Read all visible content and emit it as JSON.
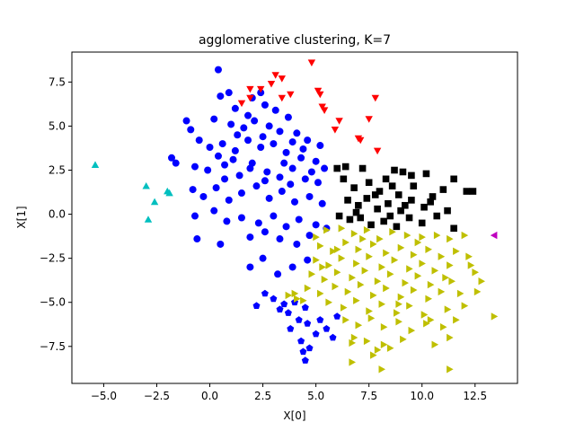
{
  "chart_data": {
    "type": "scatter",
    "title": "agglomerative clustering, K=7",
    "xlabel": "X[0]",
    "ylabel": "X[1]",
    "xlim": [
      -6.5,
      14.5
    ],
    "ylim": [
      -9.6,
      9.2
    ],
    "xticks": [
      -5.0,
      -2.5,
      0.0,
      2.5,
      5.0,
      7.5,
      10.0,
      12.5
    ],
    "xtick_labels": [
      "−5.0",
      "−2.5",
      "0.0",
      "2.5",
      "5.0",
      "7.5",
      "10.0",
      "12.5"
    ],
    "yticks": [
      -7.5,
      -5.0,
      -2.5,
      0.0,
      2.5,
      5.0,
      7.5
    ],
    "ytick_labels": [
      "−7.5",
      "−5.0",
      "−2.5",
      "0.0",
      "2.5",
      "5.0",
      "7.5"
    ],
    "grid": false,
    "legend": "none",
    "series": [
      {
        "marker": "circle",
        "color": "#0000ff",
        "points": [
          [
            0.4,
            8.2
          ],
          [
            0.9,
            6.9
          ],
          [
            0.5,
            6.7
          ],
          [
            2.0,
            6.6
          ],
          [
            2.4,
            6.9
          ],
          [
            2.6,
            6.2
          ],
          [
            1.2,
            6.0
          ],
          [
            1.8,
            5.6
          ],
          [
            3.1,
            5.9
          ],
          [
            3.7,
            5.5
          ],
          [
            -1.1,
            5.3
          ],
          [
            -0.9,
            4.8
          ],
          [
            0.2,
            5.4
          ],
          [
            1.0,
            5.1
          ],
          [
            1.6,
            4.9
          ],
          [
            2.1,
            5.3
          ],
          [
            2.8,
            5.0
          ],
          [
            3.3,
            4.7
          ],
          [
            4.1,
            4.6
          ],
          [
            4.6,
            4.2
          ],
          [
            5.2,
            3.9
          ],
          [
            -0.5,
            4.2
          ],
          [
            0.0,
            3.8
          ],
          [
            0.6,
            4.0
          ],
          [
            1.2,
            3.6
          ],
          [
            1.8,
            4.2
          ],
          [
            2.4,
            3.8
          ],
          [
            3.0,
            4.0
          ],
          [
            3.6,
            3.5
          ],
          [
            4.3,
            3.2
          ],
          [
            5.0,
            3.0
          ],
          [
            5.4,
            2.6
          ],
          [
            -1.8,
            3.2
          ],
          [
            -1.6,
            2.9
          ],
          [
            -0.7,
            2.7
          ],
          [
            -0.1,
            2.5
          ],
          [
            0.7,
            2.8
          ],
          [
            1.4,
            2.2
          ],
          [
            2.0,
            2.9
          ],
          [
            2.7,
            2.4
          ],
          [
            3.3,
            2.1
          ],
          [
            3.9,
            2.6
          ],
          [
            4.5,
            2.0
          ],
          [
            5.1,
            1.8
          ],
          [
            -0.8,
            1.4
          ],
          [
            -0.3,
            1.0
          ],
          [
            0.3,
            1.5
          ],
          [
            0.9,
            0.8
          ],
          [
            1.5,
            1.2
          ],
          [
            2.2,
            1.6
          ],
          [
            2.8,
            0.9
          ],
          [
            3.4,
            1.3
          ],
          [
            4.0,
            0.7
          ],
          [
            4.7,
            1.0
          ],
          [
            5.3,
            0.6
          ],
          [
            -0.7,
            -0.1
          ],
          [
            0.2,
            0.2
          ],
          [
            0.8,
            -0.4
          ],
          [
            1.5,
            -0.2
          ],
          [
            2.3,
            -0.5
          ],
          [
            3.0,
            -0.1
          ],
          [
            3.6,
            -0.7
          ],
          [
            4.2,
            -0.3
          ],
          [
            5.0,
            -0.6
          ],
          [
            5.5,
            -0.8
          ],
          [
            -0.6,
            -1.4
          ],
          [
            0.5,
            -1.7
          ],
          [
            1.9,
            -1.3
          ],
          [
            2.6,
            -1.0
          ],
          [
            3.3,
            -1.4
          ],
          [
            4.1,
            -1.7
          ],
          [
            4.7,
            -1.2
          ],
          [
            1.9,
            -3.0
          ],
          [
            2.5,
            -2.5
          ],
          [
            3.2,
            -3.4
          ],
          [
            3.9,
            -3.0
          ],
          [
            4.6,
            -2.6
          ],
          [
            0.7,
            2.0
          ],
          [
            1.1,
            3.1
          ],
          [
            1.9,
            2.6
          ],
          [
            3.5,
            2.9
          ],
          [
            4.8,
            2.4
          ],
          [
            2.6,
            1.9
          ],
          [
            3.8,
            1.7
          ],
          [
            1.3,
            4.5
          ],
          [
            2.5,
            4.4
          ],
          [
            3.9,
            4.1
          ],
          [
            4.4,
            3.7
          ],
          [
            0.4,
            3.3
          ]
        ]
      },
      {
        "marker": "pentagon",
        "color": "#0000ff",
        "points": [
          [
            2.6,
            -4.5
          ],
          [
            3.0,
            -4.8
          ],
          [
            2.2,
            -5.2
          ],
          [
            3.3,
            -5.4
          ],
          [
            3.7,
            -5.6
          ],
          [
            4.0,
            -5.0
          ],
          [
            4.5,
            -5.3
          ],
          [
            4.2,
            -6.0
          ],
          [
            3.8,
            -6.5
          ],
          [
            4.6,
            -6.2
          ],
          [
            5.0,
            -6.8
          ],
          [
            4.3,
            -7.2
          ],
          [
            4.7,
            -7.6
          ],
          [
            5.5,
            -6.5
          ],
          [
            5.8,
            -7.0
          ],
          [
            6.0,
            -5.8
          ],
          [
            3.5,
            -5.1
          ],
          [
            4.4,
            -7.8
          ],
          [
            4.5,
            -8.3
          ],
          [
            5.2,
            -6.0
          ]
        ]
      },
      {
        "marker": "triangle-down",
        "color": "#ff0000",
        "points": [
          [
            4.8,
            8.6
          ],
          [
            3.1,
            7.9
          ],
          [
            3.4,
            7.7
          ],
          [
            2.9,
            7.4
          ],
          [
            2.4,
            7.1
          ],
          [
            1.9,
            7.1
          ],
          [
            3.8,
            6.8
          ],
          [
            5.1,
            7.0
          ],
          [
            5.2,
            6.8
          ],
          [
            1.9,
            6.6
          ],
          [
            1.5,
            6.3
          ],
          [
            3.4,
            6.6
          ],
          [
            7.8,
            6.6
          ],
          [
            5.3,
            6.1
          ],
          [
            5.4,
            5.9
          ],
          [
            6.1,
            5.3
          ],
          [
            5.9,
            4.8
          ],
          [
            7.5,
            5.4
          ],
          [
            7.0,
            4.3
          ],
          [
            7.1,
            4.2
          ],
          [
            7.9,
            3.6
          ]
        ]
      },
      {
        "marker": "square",
        "color": "#000000",
        "points": [
          [
            6.0,
            2.6
          ],
          [
            6.4,
            2.7
          ],
          [
            7.2,
            2.6
          ],
          [
            8.7,
            2.5
          ],
          [
            9.1,
            2.4
          ],
          [
            9.5,
            2.2
          ],
          [
            8.3,
            2.0
          ],
          [
            10.2,
            2.3
          ],
          [
            11.5,
            2.0
          ],
          [
            6.3,
            2.0
          ],
          [
            6.8,
            1.5
          ],
          [
            7.5,
            1.8
          ],
          [
            8.0,
            1.3
          ],
          [
            8.9,
            1.1
          ],
          [
            9.6,
            1.6
          ],
          [
            10.5,
            1.0
          ],
          [
            11.0,
            1.4
          ],
          [
            12.1,
            1.3
          ],
          [
            12.4,
            1.3
          ],
          [
            6.5,
            0.8
          ],
          [
            7.0,
            0.5
          ],
          [
            7.4,
            0.9
          ],
          [
            7.9,
            0.3
          ],
          [
            8.4,
            0.6
          ],
          [
            9.0,
            0.2
          ],
          [
            9.5,
            0.8
          ],
          [
            10.1,
            0.4
          ],
          [
            10.7,
            -0.1
          ],
          [
            11.2,
            0.2
          ],
          [
            6.1,
            -0.1
          ],
          [
            6.6,
            -0.3
          ],
          [
            7.1,
            -0.2
          ],
          [
            7.6,
            -0.6
          ],
          [
            8.2,
            -0.4
          ],
          [
            8.8,
            -0.7
          ],
          [
            9.4,
            -0.2
          ],
          [
            10.0,
            -0.5
          ],
          [
            11.5,
            -0.8
          ],
          [
            8.5,
            -0.1
          ],
          [
            9.2,
            0.5
          ],
          [
            7.8,
            1.1
          ],
          [
            8.6,
            1.6
          ],
          [
            10.4,
            0.7
          ],
          [
            6.9,
            0.1
          ]
        ]
      },
      {
        "marker": "triangle-right",
        "color": "#bfbf00",
        "points": [
          [
            5.0,
            -1.3
          ],
          [
            5.5,
            -0.9
          ],
          [
            6.2,
            -0.8
          ],
          [
            6.8,
            -1.1
          ],
          [
            7.4,
            -0.9
          ],
          [
            8.0,
            -1.4
          ],
          [
            8.6,
            -1.0
          ],
          [
            9.3,
            -1.2
          ],
          [
            10.0,
            -1.3
          ],
          [
            10.7,
            -1.2
          ],
          [
            11.3,
            -1.4
          ],
          [
            12.0,
            -1.2
          ],
          [
            5.2,
            -1.8
          ],
          [
            5.8,
            -2.1
          ],
          [
            6.4,
            -1.6
          ],
          [
            7.0,
            -2.0
          ],
          [
            7.7,
            -1.7
          ],
          [
            8.3,
            -2.2
          ],
          [
            9.0,
            -1.9
          ],
          [
            9.6,
            -2.3
          ],
          [
            10.3,
            -2.0
          ],
          [
            10.9,
            -2.4
          ],
          [
            11.6,
            -2.1
          ],
          [
            5.0,
            -2.6
          ],
          [
            5.6,
            -2.9
          ],
          [
            6.2,
            -2.5
          ],
          [
            6.9,
            -2.8
          ],
          [
            7.5,
            -2.4
          ],
          [
            8.1,
            -3.0
          ],
          [
            8.7,
            -2.6
          ],
          [
            9.4,
            -3.1
          ],
          [
            10.0,
            -2.8
          ],
          [
            10.6,
            -3.2
          ],
          [
            11.3,
            -2.9
          ],
          [
            12.2,
            -2.4
          ],
          [
            4.8,
            -3.4
          ],
          [
            5.4,
            -3.7
          ],
          [
            6.0,
            -3.3
          ],
          [
            6.7,
            -3.6
          ],
          [
            7.3,
            -3.2
          ],
          [
            7.9,
            -3.8
          ],
          [
            8.5,
            -3.4
          ],
          [
            9.2,
            -3.9
          ],
          [
            9.8,
            -3.5
          ],
          [
            10.4,
            -4.0
          ],
          [
            11.1,
            -3.6
          ],
          [
            12.5,
            -3.3
          ],
          [
            4.6,
            -4.2
          ],
          [
            5.2,
            -4.5
          ],
          [
            5.9,
            -4.1
          ],
          [
            6.5,
            -4.4
          ],
          [
            7.1,
            -4.0
          ],
          [
            7.7,
            -4.6
          ],
          [
            8.3,
            -4.2
          ],
          [
            9.0,
            -4.7
          ],
          [
            9.6,
            -4.3
          ],
          [
            10.3,
            -4.8
          ],
          [
            10.9,
            -4.4
          ],
          [
            11.8,
            -4.5
          ],
          [
            12.6,
            -4.4
          ],
          [
            3.7,
            -4.6
          ],
          [
            4.1,
            -4.8
          ],
          [
            5.6,
            -5.0
          ],
          [
            6.3,
            -5.3
          ],
          [
            6.9,
            -4.9
          ],
          [
            7.5,
            -5.5
          ],
          [
            8.1,
            -5.1
          ],
          [
            8.8,
            -5.6
          ],
          [
            9.4,
            -5.2
          ],
          [
            10.1,
            -5.7
          ],
          [
            11.2,
            -5.4
          ],
          [
            12.0,
            -5.2
          ],
          [
            13.4,
            -5.8
          ],
          [
            6.4,
            -6.0
          ],
          [
            7.0,
            -6.3
          ],
          [
            7.6,
            -5.9
          ],
          [
            8.2,
            -6.4
          ],
          [
            8.9,
            -6.1
          ],
          [
            9.5,
            -6.6
          ],
          [
            10.2,
            -6.2
          ],
          [
            11.0,
            -6.4
          ],
          [
            11.6,
            -6.0
          ],
          [
            6.8,
            -7.0
          ],
          [
            7.4,
            -7.2
          ],
          [
            8.2,
            -7.4
          ],
          [
            9.1,
            -7.1
          ],
          [
            10.6,
            -7.4
          ],
          [
            11.3,
            -7.0
          ],
          [
            7.9,
            -7.7
          ],
          [
            6.7,
            -7.3
          ],
          [
            7.7,
            -8.0
          ],
          [
            8.5,
            -7.6
          ],
          [
            6.7,
            -8.4
          ],
          [
            8.1,
            -8.8
          ],
          [
            11.3,
            -8.8
          ],
          [
            4.0,
            -4.5
          ],
          [
            4.4,
            -4.9
          ],
          [
            12.8,
            -3.8
          ],
          [
            6.0,
            -2.0
          ],
          [
            7.2,
            -1.4
          ],
          [
            9.8,
            -1.6
          ],
          [
            5.3,
            -3.0
          ],
          [
            8.9,
            -5.1
          ],
          [
            10.4,
            -6.0
          ],
          [
            12.3,
            -2.9
          ],
          [
            11.4,
            -3.8
          ]
        ]
      },
      {
        "marker": "triangle-up",
        "color": "#00bfbf",
        "points": [
          [
            -5.4,
            2.8
          ],
          [
            -3.0,
            1.6
          ],
          [
            -2.0,
            1.3
          ],
          [
            -1.9,
            1.2
          ],
          [
            -2.6,
            0.7
          ],
          [
            -2.9,
            -0.3
          ]
        ]
      },
      {
        "marker": "triangle-left",
        "color": "#bf00bf",
        "points": [
          [
            13.4,
            -1.2
          ]
        ]
      }
    ]
  }
}
